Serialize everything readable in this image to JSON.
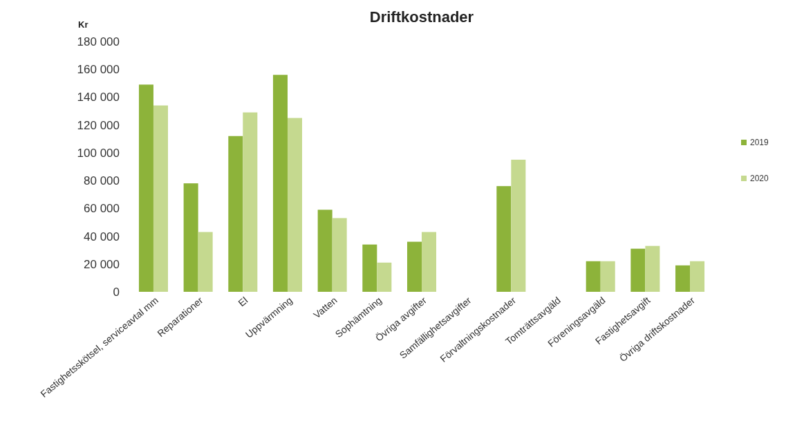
{
  "chart_data": {
    "type": "bar",
    "title": "Driftkostnader",
    "ylabel": "Kr",
    "categories": [
      "Fastighetsskötsel, serviceavtal mm",
      "Reparationer",
      "El",
      "Uppvärmning",
      "Vatten",
      "Sophämtning",
      "Övriga avgifter",
      "Samfällighetsavgifter",
      "Förvaltningskostnader",
      "Tomträttsavgäld",
      "Föreningsavgäld",
      "Fastighetsavgift",
      "Övriga driftskostnader"
    ],
    "series": [
      {
        "name": "2019",
        "color": "#8db33a",
        "values": [
          149000,
          78000,
          112000,
          156000,
          59000,
          34000,
          36000,
          0,
          76000,
          0,
          22000,
          31000,
          19000
        ]
      },
      {
        "name": "2020",
        "color": "#c5d98f",
        "values": [
          134000,
          43000,
          129000,
          125000,
          53000,
          21000,
          43000,
          0,
          95000,
          0,
          22000,
          33000,
          22000
        ]
      }
    ],
    "ylim": [
      0,
      180000
    ],
    "yticks": [
      {
        "value": 0,
        "label": "0"
      },
      {
        "value": 20000,
        "label": "20 000"
      },
      {
        "value": 40000,
        "label": "40 000"
      },
      {
        "value": 60000,
        "label": "60 000"
      },
      {
        "value": 80000,
        "label": "80 000"
      },
      {
        "value": 100000,
        "label": "100 000"
      },
      {
        "value": 120000,
        "label": "120 000"
      },
      {
        "value": 140000,
        "label": "140 000"
      },
      {
        "value": 160000,
        "label": "160 000"
      },
      {
        "value": 180000,
        "label": "180 000"
      }
    ],
    "legend": "right"
  }
}
